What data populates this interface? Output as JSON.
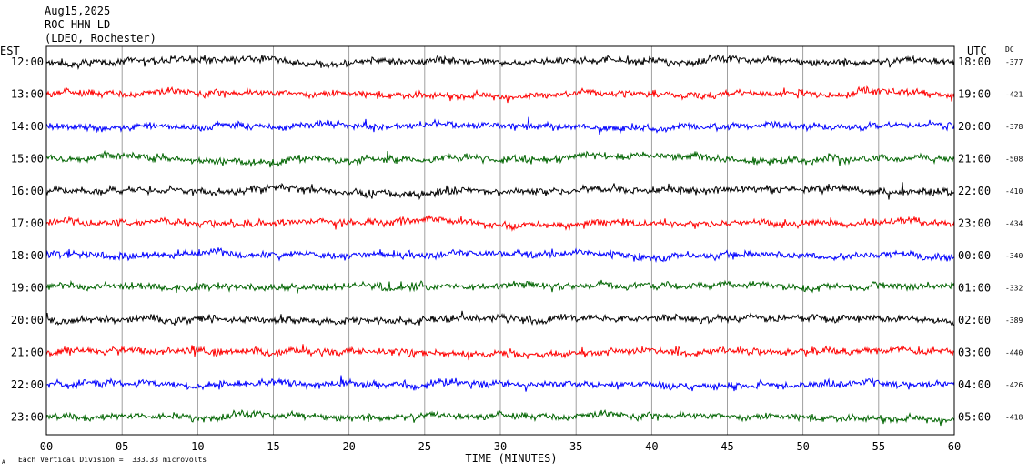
{
  "header": {
    "date": "Aug15,2025",
    "station": "ROC HHN LD --",
    "network": "(LDEO, Rochester)"
  },
  "left_axis_label": "EST",
  "right_axis_label": "UTC",
  "dc_label": "DC",
  "xlabel": "TIME (MINUTES)",
  "footer_note": "Each Vertical Division =  333.33 microvolts",
  "chart_data": {
    "type": "line",
    "title": "",
    "xlabel": "TIME (MINUTES)",
    "xlim": [
      0,
      60
    ],
    "x_ticks": [
      "00",
      "05",
      "10",
      "15",
      "20",
      "25",
      "30",
      "35",
      "40",
      "45",
      "50",
      "55",
      "60"
    ],
    "y_left_labels": [
      "12:00",
      "13:00",
      "14:00",
      "15:00",
      "16:00",
      "17:00",
      "18:00",
      "19:00",
      "20:00",
      "21:00",
      "22:00",
      "23:00"
    ],
    "y_right_labels": [
      "18:00",
      "19:00",
      "20:00",
      "21:00",
      "22:00",
      "23:00",
      "00:00",
      "01:00",
      "02:00",
      "03:00",
      "04:00",
      "05:00"
    ],
    "dc_offsets": [
      "-377",
      "-421",
      "-378",
      "-508",
      "-410",
      "-434",
      "-340",
      "-332",
      "-389",
      "-440",
      "-426",
      "-418"
    ],
    "trace_colors": [
      "#000000",
      "#ff0000",
      "#0000ff",
      "#006400"
    ],
    "grid": "vertical lines every 5 minutes",
    "vertical_division_microvolts": 333.33
  }
}
